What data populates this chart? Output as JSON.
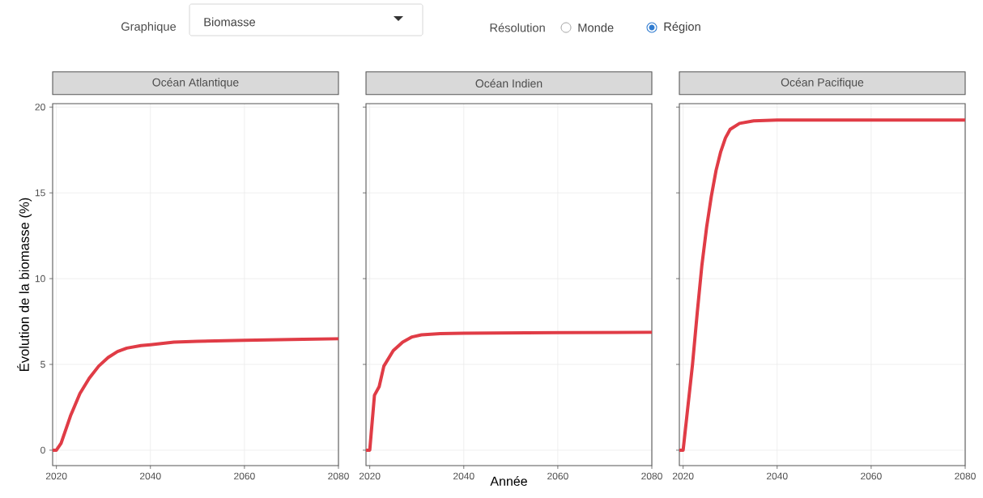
{
  "chart_data": [
    {
      "type": "line",
      "title": "Océan Atlantique",
      "ylabel": "Évolution de la biomasse (%)",
      "annotations": [
        "Graphique",
        "Biomasse",
        "Résolution",
        "Monde",
        "Région"
      ],
      "xlim": [
        2019.2,
        2080
      ],
      "ylim": [
        -0.9,
        20.2
      ],
      "xticks": [
        2020,
        2040,
        2060,
        2080
      ],
      "yticks": [
        0,
        5,
        10,
        15,
        20
      ],
      "grid": true,
      "x": [
        2019.2,
        2020,
        2021,
        2023,
        2025,
        2027,
        2029,
        2031,
        2033,
        2035,
        2038,
        2040,
        2045,
        2050,
        2060,
        2070,
        2080
      ],
      "series": [
        {
          "color": "#e03c46",
          "values": [
            0,
            0,
            0.4,
            2,
            3.3,
            4.2,
            4.9,
            5.4,
            5.75,
            5.95,
            6.1,
            6.15,
            6.3,
            6.35,
            6.4,
            6.45,
            6.5
          ]
        }
      ]
    },
    {
      "type": "line",
      "title": "Océan Indien",
      "xlabel": "Année",
      "xlim": [
        2019.2,
        2080
      ],
      "ylim": [
        -0.9,
        20.2
      ],
      "xticks": [
        2020,
        2040,
        2060,
        2080
      ],
      "yticks": [
        0,
        5,
        10,
        15,
        20
      ],
      "grid": true,
      "tick_labels": "x",
      "x": [
        2019.2,
        2020,
        2021,
        2022,
        2023,
        2025,
        2027,
        2029,
        2031,
        2035,
        2040,
        2060,
        2080
      ],
      "series": [
        {
          "color": "#e03c46",
          "values": [
            0,
            0,
            3.2,
            3.7,
            4.9,
            5.8,
            6.3,
            6.6,
            6.72,
            6.8,
            6.82,
            6.85,
            6.88
          ]
        }
      ]
    },
    {
      "type": "line",
      "title": "Océan Pacifique",
      "xlim": [
        2019.2,
        2080
      ],
      "ylim": [
        -0.9,
        20.2
      ],
      "xticks": [
        2020,
        2040,
        2060,
        2080
      ],
      "yticks": [
        0,
        5,
        10,
        15,
        20
      ],
      "grid": true,
      "tick_labels": "x",
      "x": [
        2019.2,
        2020,
        2021,
        2022,
        2023,
        2024,
        2025,
        2026,
        2027,
        2028,
        2029,
        2030,
        2032,
        2035,
        2040,
        2080
      ],
      "series": [
        {
          "color": "#e03c46",
          "values": [
            0,
            0,
            2.5,
            5,
            8,
            10.8,
            13,
            14.8,
            16.3,
            17.4,
            18.2,
            18.7,
            19.05,
            19.2,
            19.25,
            19.25
          ]
        }
      ]
    }
  ]
}
